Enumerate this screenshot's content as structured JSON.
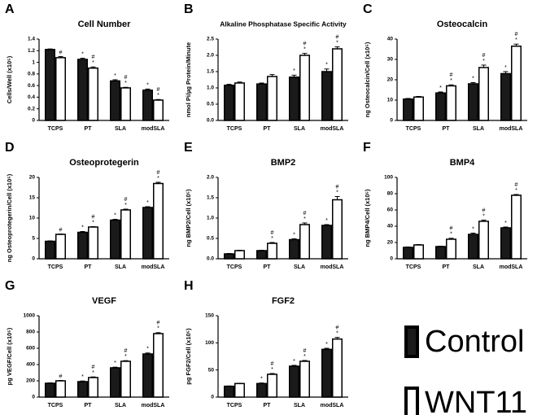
{
  "chart_data": [
    {
      "type": "bar",
      "label": "A",
      "title": "Cell Number",
      "ylabel": "Cells/Well (x10⁵)",
      "categories": [
        "TCPS",
        "PT",
        "SLA",
        "modSLA"
      ],
      "ylim": [
        0,
        1.4
      ],
      "yticks": [
        0,
        0.2,
        0.4,
        0.6,
        0.8,
        1,
        1.2,
        1.4
      ],
      "series": [
        {
          "values": [
            1.22,
            1.05,
            0.68,
            0.52
          ],
          "errors": [
            0.01,
            0.02,
            0.02,
            0.02
          ],
          "annotations": [
            null,
            [
              "*"
            ],
            [
              "*"
            ],
            [
              "*"
            ]
          ]
        },
        {
          "values": [
            1.08,
            0.9,
            0.56,
            0.35
          ],
          "errors": [
            0.02,
            0.02,
            0.01,
            0.01
          ],
          "annotations": [
            [
              "#"
            ],
            [
              "#",
              "*"
            ],
            [
              "#",
              "*"
            ],
            [
              "#",
              "*"
            ]
          ]
        }
      ]
    },
    {
      "type": "bar",
      "label": "B",
      "title": "Alkaline Phosphatase Specific Activity",
      "ylabel": "nmol Pi/µg Protein/Minute",
      "categories": [
        "TCPS",
        "PT",
        "SLA",
        "modSLA"
      ],
      "ylim": [
        0,
        2.5
      ],
      "yticks": [
        {
          "value": 0,
          "label": "0.0"
        },
        {
          "value": 0.5,
          "label": "0.5"
        },
        {
          "value": 1,
          "label": "1.0"
        },
        {
          "value": 1.5,
          "label": "1.5"
        },
        {
          "value": 2,
          "label": "2.0"
        },
        {
          "value": 2.5,
          "label": "2.5"
        }
      ],
      "series": [
        {
          "values": [
            1.08,
            1.12,
            1.33,
            1.5
          ],
          "errors": [
            0.03,
            0.03,
            0.06,
            0.08
          ],
          "annotations": [
            null,
            null,
            [
              "*"
            ],
            [
              "*"
            ]
          ]
        },
        {
          "values": [
            1.15,
            1.35,
            2.0,
            2.2
          ],
          "errors": [
            0.03,
            0.06,
            0.06,
            0.06
          ],
          "annotations": [
            null,
            null,
            [
              "#",
              "*"
            ],
            [
              "#",
              "*"
            ]
          ]
        }
      ]
    },
    {
      "type": "bar",
      "label": "C",
      "title": "Osteocalcin",
      "ylabel": "ng Osteocalcin/Cell (x10⁵)",
      "categories": [
        "TCPS",
        "PT",
        "SLA",
        "modSLA"
      ],
      "ylim": [
        0,
        40
      ],
      "yticks": [
        0,
        10,
        20,
        30,
        40
      ],
      "series": [
        {
          "values": [
            10.5,
            13.5,
            18,
            23
          ],
          "errors": [
            0.3,
            0.5,
            0.6,
            1
          ],
          "annotations": [
            null,
            [
              "*"
            ],
            [
              "*"
            ],
            [
              "*"
            ]
          ]
        },
        {
          "values": [
            11.5,
            17,
            26,
            36.5
          ],
          "errors": [
            0.3,
            0.5,
            1.2,
            1
          ],
          "annotations": [
            null,
            [
              "#",
              "*"
            ],
            [
              "#",
              "*"
            ],
            [
              "#",
              "*"
            ]
          ]
        }
      ]
    },
    {
      "type": "bar",
      "label": "D",
      "title": "Osteoprotegerin",
      "ylabel": "ng Osteoprotegerin/Cell (x10⁵)",
      "categories": [
        "TCPS",
        "PT",
        "SLA",
        "modSLA"
      ],
      "ylim": [
        0,
        20
      ],
      "yticks": [
        0,
        5,
        10,
        15,
        20
      ],
      "series": [
        {
          "values": [
            4.3,
            6.5,
            9.5,
            12.6
          ],
          "errors": [
            0.1,
            0.2,
            0.2,
            0.2
          ],
          "annotations": [
            null,
            [
              "*"
            ],
            [
              "*"
            ],
            [
              "*"
            ]
          ]
        },
        {
          "values": [
            6,
            7.8,
            12,
            18.5
          ],
          "errors": [
            0.1,
            0.1,
            0.2,
            0.3
          ],
          "annotations": [
            [
              "#"
            ],
            [
              "#",
              "*"
            ],
            [
              "#",
              "*"
            ],
            [
              "#",
              "*"
            ]
          ]
        }
      ]
    },
    {
      "type": "bar",
      "label": "E",
      "title": "BMP2",
      "ylabel": "ng BMP2/Cell (x10⁵)",
      "categories": [
        "TCPS",
        "PT",
        "SLA",
        "modSLA"
      ],
      "ylim": [
        0,
        2
      ],
      "yticks": [
        {
          "value": 0,
          "label": "0.0"
        },
        {
          "value": 0.5,
          "label": "0.5"
        },
        {
          "value": 1,
          "label": "1.0"
        },
        {
          "value": 1.5,
          "label": "1.5"
        },
        {
          "value": 2,
          "label": "2.0"
        }
      ],
      "series": [
        {
          "values": [
            0.12,
            0.2,
            0.47,
            0.82
          ],
          "errors": [
            0.01,
            0.01,
            0.02,
            0.02
          ],
          "annotations": [
            null,
            null,
            [
              "*"
            ],
            [
              "*"
            ]
          ]
        },
        {
          "values": [
            0.2,
            0.38,
            0.84,
            1.45
          ],
          "errors": [
            0.01,
            0.02,
            0.04,
            0.08
          ],
          "annotations": [
            null,
            [
              "#",
              "*"
            ],
            [
              "#",
              "*"
            ],
            [
              "#",
              "*"
            ]
          ]
        }
      ]
    },
    {
      "type": "bar",
      "label": "F",
      "title": "BMP4",
      "ylabel": "ng BMP4/Cell (x10⁵)",
      "categories": [
        "TCPS",
        "PT",
        "SLA",
        "modSLA"
      ],
      "ylim": [
        0,
        100
      ],
      "yticks": [
        0,
        20,
        40,
        60,
        80,
        100
      ],
      "series": [
        {
          "values": [
            14,
            15,
            30,
            38
          ],
          "errors": [
            0.5,
            0.5,
            1.5,
            1
          ],
          "annotations": [
            null,
            null,
            [
              "*"
            ],
            [
              "*"
            ]
          ]
        },
        {
          "values": [
            17,
            24,
            46,
            78
          ],
          "errors": [
            0.5,
            1.2,
            1.5,
            1
          ],
          "annotations": [
            null,
            [
              "#",
              "*"
            ],
            [
              "#",
              "*"
            ],
            [
              "#",
              "*"
            ]
          ]
        }
      ]
    },
    {
      "type": "bar",
      "label": "G",
      "title": "VEGF",
      "ylabel": "pg VEGF/Cell (x10⁵)",
      "categories": [
        "TCPS",
        "PT",
        "SLA",
        "modSLA"
      ],
      "ylim": [
        0,
        1000
      ],
      "yticks": [
        0,
        200,
        400,
        600,
        800,
        1000
      ],
      "series": [
        {
          "values": [
            170,
            190,
            360,
            530
          ],
          "errors": [
            5,
            8,
            8,
            12
          ],
          "annotations": [
            null,
            [
              "*"
            ],
            [
              "*"
            ],
            [
              "*"
            ]
          ]
        },
        {
          "values": [
            200,
            240,
            440,
            780
          ],
          "errors": [
            5,
            8,
            8,
            12
          ],
          "annotations": [
            [
              "#"
            ],
            [
              "#",
              "*"
            ],
            [
              "#",
              "*"
            ],
            [
              "#",
              "*"
            ]
          ]
        }
      ]
    },
    {
      "type": "bar",
      "label": "H",
      "title": "FGF2",
      "ylabel": "pg FGF2/Cell (x10⁵)",
      "categories": [
        "TCPS",
        "PT",
        "SLA",
        "modSLA"
      ],
      "ylim": [
        0,
        150
      ],
      "yticks": [
        0,
        50,
        100,
        150
      ],
      "series": [
        {
          "values": [
            20,
            25,
            57,
            88
          ],
          "errors": [
            0.5,
            1,
            1.5,
            2
          ],
          "annotations": [
            null,
            [
              "*"
            ],
            [
              "*"
            ],
            [
              "*"
            ]
          ]
        },
        {
          "values": [
            25,
            42,
            66,
            107
          ],
          "errors": [
            0.5,
            1.5,
            1.5,
            3
          ],
          "annotations": [
            null,
            [
              "#",
              "*"
            ],
            [
              "#",
              "*"
            ],
            [
              "#",
              "*"
            ]
          ]
        }
      ]
    }
  ],
  "legend": [
    {
      "name": "Control",
      "color": "#1a1a1a"
    },
    {
      "name": "WNT11",
      "color": "#ffffff"
    }
  ]
}
